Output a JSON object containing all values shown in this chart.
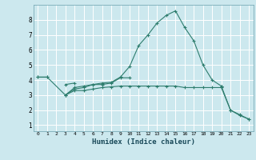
{
  "xlabel": "Humidex (Indice chaleur)",
  "background_color": "#cce8ee",
  "grid_color": "#ffffff",
  "line_color": "#2e7d6e",
  "x_ticks": [
    0,
    1,
    2,
    3,
    4,
    5,
    6,
    7,
    8,
    9,
    10,
    11,
    12,
    13,
    14,
    15,
    16,
    17,
    18,
    19,
    20,
    21,
    22,
    23
  ],
  "y_ticks": [
    1,
    2,
    3,
    4,
    5,
    6,
    7,
    8
  ],
  "ylim": [
    0.6,
    9.0
  ],
  "xlim": [
    -0.5,
    23.5
  ],
  "series": [
    {
      "x": [
        0,
        1
      ],
      "y": [
        4.2,
        4.2
      ]
    },
    {
      "x": [
        3,
        4,
        5,
        6,
        7,
        8,
        9,
        10
      ],
      "y": [
        3.0,
        3.4,
        3.5,
        3.7,
        3.7,
        3.8,
        4.15,
        4.15
      ]
    },
    {
      "x": [
        3,
        4
      ],
      "y": [
        3.7,
        3.8
      ]
    },
    {
      "x": [
        0,
        1,
        3,
        4,
        5,
        6,
        7,
        8,
        9,
        10,
        11,
        12,
        13,
        14,
        15,
        16,
        17,
        18,
        19,
        20
      ],
      "y": [
        4.2,
        4.2,
        3.0,
        3.5,
        3.6,
        3.7,
        3.8,
        3.85,
        4.2,
        4.9,
        6.3,
        7.0,
        7.8,
        8.3,
        8.6,
        7.5,
        6.6,
        5.0,
        4.0,
        3.6
      ]
    },
    {
      "x": [
        20,
        21,
        22,
        23
      ],
      "y": [
        3.6,
        2.0,
        1.7,
        1.4
      ]
    },
    {
      "x": [
        3,
        4,
        5,
        6,
        7,
        8,
        9,
        10,
        11,
        12,
        13,
        14,
        15,
        16,
        17,
        18,
        19,
        20,
        21,
        22,
        23
      ],
      "y": [
        3.0,
        3.3,
        3.3,
        3.4,
        3.5,
        3.55,
        3.6,
        3.6,
        3.6,
        3.6,
        3.6,
        3.6,
        3.6,
        3.5,
        3.5,
        3.5,
        3.5,
        3.5,
        2.0,
        1.65,
        1.4
      ]
    }
  ]
}
